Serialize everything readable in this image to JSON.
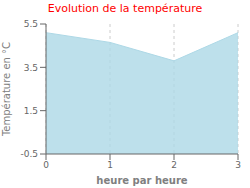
{
  "chart_data": {
    "type": "area",
    "title": "Evolution de la température",
    "xlabel": "heure par heure",
    "ylabel": "Température en °C",
    "x": [
      0,
      1,
      2,
      3
    ],
    "values": [
      5.1,
      4.65,
      3.8,
      5.1
    ],
    "color": "#add8e6",
    "xlim": [
      0,
      3
    ],
    "ylim": [
      -0.5,
      5.5
    ],
    "xticks": [
      0,
      1,
      2,
      3
    ],
    "yticks": [
      -0.5,
      1.5,
      3.5,
      5.5
    ],
    "grid": "x"
  }
}
